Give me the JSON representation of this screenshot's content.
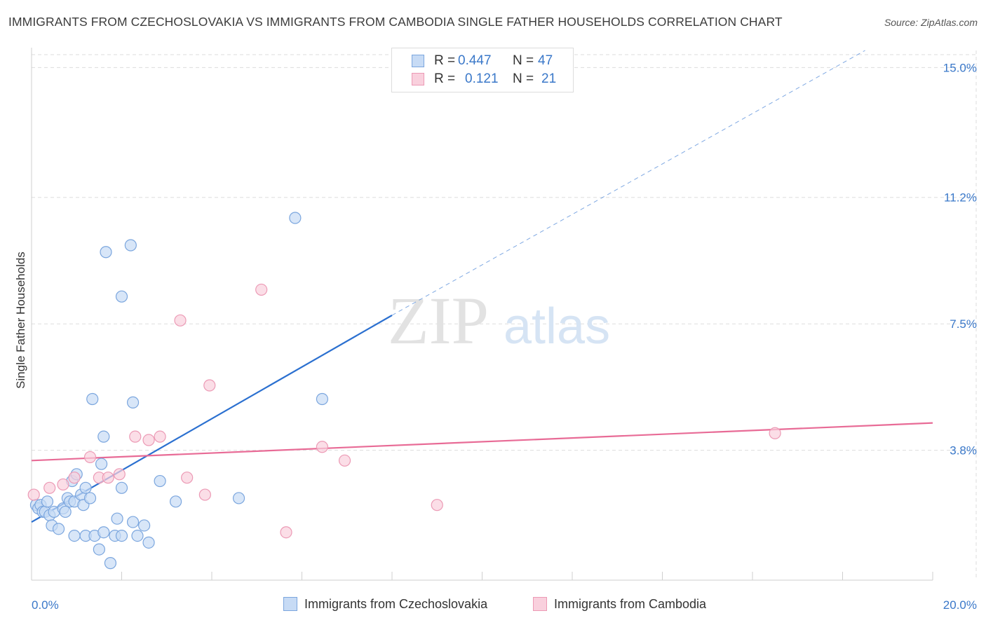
{
  "header": {
    "title": "IMMIGRANTS FROM CZECHOSLOVAKIA VS IMMIGRANTS FROM CAMBODIA SINGLE FATHER HOUSEHOLDS CORRELATION CHART",
    "source": "Source: ZipAtlas.com"
  },
  "watermark": {
    "zip": "ZIP",
    "atlas": "atlas"
  },
  "legend": {
    "rows": [
      {
        "r_label": "R = ",
        "r_value": "0.447",
        "n_label": "N = ",
        "n_value": "47"
      },
      {
        "r_label": "R = ",
        "r_value": "0.121",
        "n_label": "N = ",
        "n_value": "21"
      }
    ]
  },
  "bottom_legend": {
    "items": [
      "Immigrants from Czechoslovakia",
      "Immigrants from Cambodia"
    ]
  },
  "colors": {
    "blue_fill": "#c7dbf5",
    "blue_stroke": "#7ba6de",
    "blue_line": "#2b70d0",
    "pink_fill": "#f9d0dd",
    "pink_stroke": "#ec9ab5",
    "pink_line": "#e86b96",
    "grid": "#dddddd",
    "tick_text": "#3a78c9"
  },
  "chart_data": {
    "type": "scatter",
    "title": "IMMIGRANTS FROM CZECHOSLOVAKIA VS IMMIGRANTS FROM CAMBODIA SINGLE FATHER HOUSEHOLDS CORRELATION CHART",
    "xlabel": "",
    "ylabel": "Single Father Households",
    "xlim": [
      0,
      20
    ],
    "ylim": [
      0,
      15.5
    ],
    "x_tick_labels": [
      "0.0%",
      "20.0%"
    ],
    "y_ticks": [
      3.8,
      7.5,
      11.2,
      15.0
    ],
    "y_tick_labels": [
      "3.8%",
      "7.5%",
      "11.2%",
      "15.0%"
    ],
    "series": [
      {
        "name": "Immigrants from Czechoslovakia",
        "color": "blue",
        "points": [
          [
            0.1,
            2.2
          ],
          [
            0.15,
            2.1
          ],
          [
            0.2,
            2.2
          ],
          [
            0.25,
            2.0
          ],
          [
            0.3,
            2.0
          ],
          [
            0.35,
            2.3
          ],
          [
            0.4,
            1.9
          ],
          [
            0.45,
            1.6
          ],
          [
            0.5,
            2.0
          ],
          [
            0.6,
            1.5
          ],
          [
            0.7,
            2.1
          ],
          [
            0.75,
            2.0
          ],
          [
            0.8,
            2.4
          ],
          [
            0.85,
            2.3
          ],
          [
            0.9,
            2.9
          ],
          [
            0.95,
            2.3
          ],
          [
            1.0,
            3.1
          ],
          [
            1.1,
            2.5
          ],
          [
            1.15,
            2.2
          ],
          [
            1.2,
            2.7
          ],
          [
            1.3,
            2.4
          ],
          [
            0.95,
            1.3
          ],
          [
            1.2,
            1.3
          ],
          [
            1.4,
            1.3
          ],
          [
            1.5,
            0.9
          ],
          [
            1.6,
            1.4
          ],
          [
            1.75,
            0.5
          ],
          [
            1.85,
            1.3
          ],
          [
            1.9,
            1.8
          ],
          [
            2.0,
            1.3
          ],
          [
            2.25,
            1.7
          ],
          [
            2.35,
            1.3
          ],
          [
            2.5,
            1.6
          ],
          [
            2.6,
            1.1
          ],
          [
            1.35,
            5.3
          ],
          [
            1.6,
            4.2
          ],
          [
            1.55,
            3.4
          ],
          [
            1.65,
            9.6
          ],
          [
            2.0,
            8.3
          ],
          [
            2.2,
            9.8
          ],
          [
            2.25,
            5.2
          ],
          [
            2.85,
            2.9
          ],
          [
            3.2,
            2.3
          ],
          [
            4.6,
            2.4
          ],
          [
            5.85,
            10.6
          ],
          [
            6.45,
            5.3
          ],
          [
            2.0,
            2.7
          ]
        ]
      },
      {
        "name": "Immigrants from Cambodia",
        "color": "pink",
        "points": [
          [
            0.05,
            2.5
          ],
          [
            0.4,
            2.7
          ],
          [
            0.7,
            2.8
          ],
          [
            0.95,
            3.0
          ],
          [
            1.3,
            3.6
          ],
          [
            1.5,
            3.0
          ],
          [
            1.7,
            3.0
          ],
          [
            1.95,
            3.1
          ],
          [
            2.3,
            4.2
          ],
          [
            2.6,
            4.1
          ],
          [
            2.85,
            4.2
          ],
          [
            3.3,
            7.6
          ],
          [
            3.45,
            3.0
          ],
          [
            3.85,
            2.5
          ],
          [
            3.95,
            5.7
          ],
          [
            5.1,
            8.5
          ],
          [
            5.65,
            1.4
          ],
          [
            6.45,
            3.9
          ],
          [
            6.95,
            3.5
          ],
          [
            9.0,
            2.2
          ],
          [
            16.5,
            4.3
          ]
        ]
      }
    ],
    "trend_lines": [
      {
        "series": "Immigrants from Czechoslovakia",
        "x_solid": [
          0,
          8
        ],
        "y_solid": [
          1.7,
          7.75
        ],
        "x_dashed": [
          8,
          18.5
        ],
        "y_dashed": [
          7.75,
          15.5
        ]
      },
      {
        "series": "Immigrants from Cambodia",
        "x": [
          0,
          20
        ],
        "y": [
          3.5,
          4.6
        ]
      }
    ]
  }
}
